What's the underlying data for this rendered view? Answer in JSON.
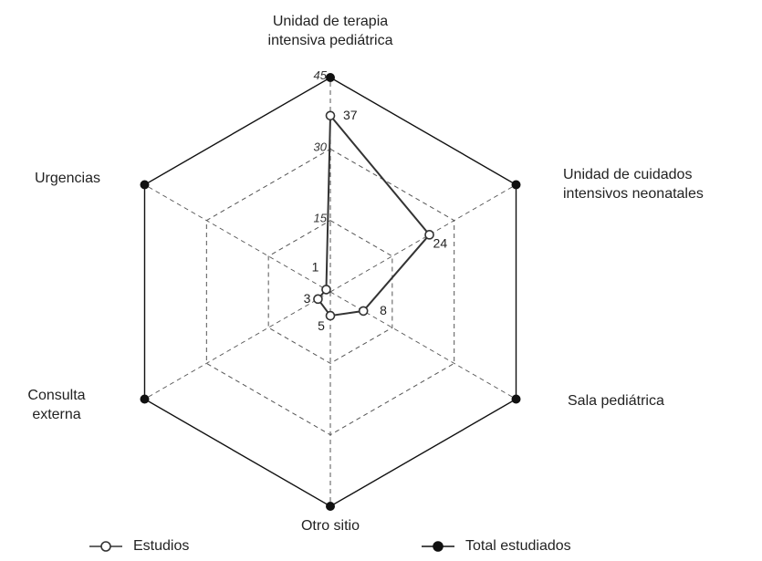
{
  "chart_data": {
    "type": "radar",
    "axes": [
      "Unidad de terapia intensiva pediátrica",
      "Unidad de cuidados intensivos neonatales",
      "Sala pediátrica",
      "Otro sitio",
      "Consulta externa",
      "Urgencias"
    ],
    "axis_label_lines": [
      [
        "Unidad de terapia",
        "intensiva pediátrica"
      ],
      [
        "Unidad de cuidados",
        "intensivos neonatales"
      ],
      [
        "Sala pediátrica"
      ],
      [
        "Otro sitio"
      ],
      [
        "Consulta",
        "externa"
      ],
      [
        "Urgencias"
      ]
    ],
    "r_ticks": [
      15,
      30,
      45
    ],
    "r_range": [
      0,
      45
    ],
    "series": [
      {
        "name": "Estudios",
        "values": [
          37,
          24,
          8,
          5,
          3,
          1
        ],
        "labels": [
          "37",
          "24",
          "8",
          "5",
          "3",
          "1"
        ],
        "marker": "open-circle",
        "color": "#333333"
      },
      {
        "name": "Total estudiados",
        "values": [
          45,
          45,
          45,
          45,
          45,
          45
        ],
        "marker": "filled-circle",
        "color": "#111111"
      }
    ],
    "grid": "dashed",
    "legend": "bottom"
  }
}
